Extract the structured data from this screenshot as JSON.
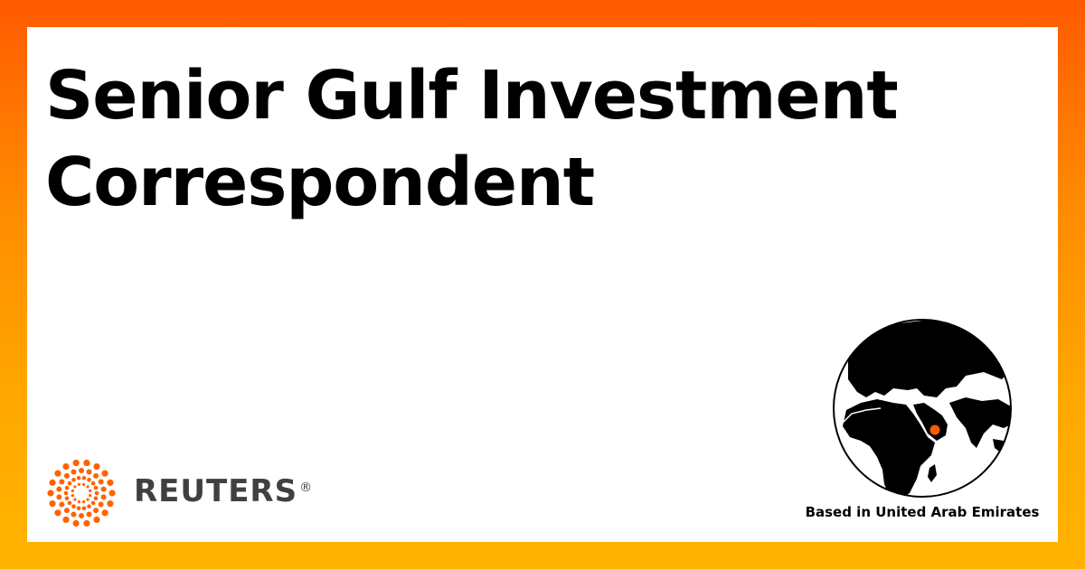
{
  "title": {
    "line1": "Senior Gulf Investment",
    "line2": "Correspondent"
  },
  "brand": {
    "name": "REUTERS",
    "mark": "®",
    "accent_color": "#ff6200",
    "logo_icon": "reuters-dot-ring-icon"
  },
  "location": {
    "label": "Based in United Arab Emirates",
    "globe_icon": "globe-icon",
    "marker_color": "#ff5a00"
  },
  "colors": {
    "frame_top": "#ff5a00",
    "frame_bottom": "#ffb300",
    "background": "#ffffff",
    "text": "#000000"
  }
}
